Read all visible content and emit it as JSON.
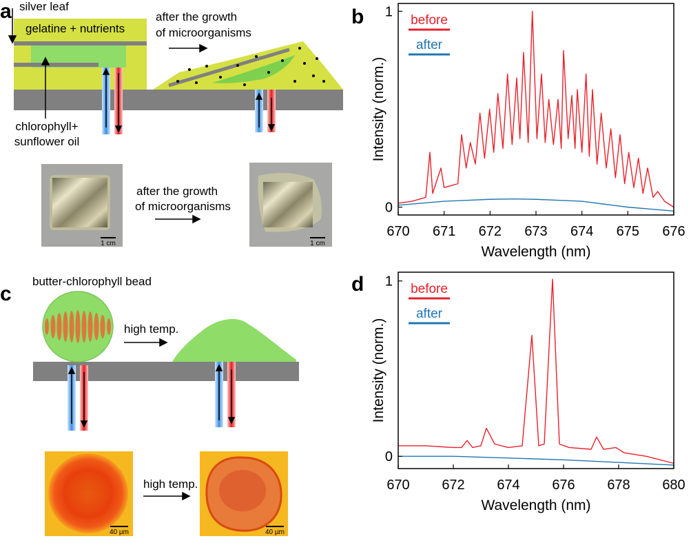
{
  "panels": {
    "a": {
      "label": "a",
      "silver_leaf": "silver leaf",
      "gelatine": "gelatine + nutrients",
      "growth_line1": "after the growth",
      "growth_line2": "of microorganisms",
      "chlorophyll_line1": "chlorophyll+",
      "chlorophyll_line2": "sunflower oil",
      "photo_line1": "after the growth",
      "photo_line2": "of microorganisms",
      "scale_left": "1 cm",
      "scale_right": "1 cm"
    },
    "b": {
      "label": "b"
    },
    "c": {
      "label": "c",
      "bead": "butter-chlorophyll bead",
      "heat": "high temp.",
      "photo_heat": "high temp.",
      "scale_left": "40 µm",
      "scale_right": "40 µm"
    },
    "d": {
      "label": "d"
    }
  },
  "chart_data": [
    {
      "type": "line",
      "xlabel": "Wavelength (nm)",
      "ylabel": "Intensity (norm.)",
      "xlim": [
        670,
        676
      ],
      "xticks": [
        670,
        671,
        672,
        673,
        674,
        675,
        676
      ],
      "ylim": [
        -0.04,
        1.04
      ],
      "yticks": [
        0,
        1
      ],
      "series": [
        {
          "name": "before",
          "color": "#e8202a",
          "x": [
            670,
            670.3,
            670.6,
            670.69,
            670.75,
            670.93,
            671.0,
            671.3,
            671.38,
            671.48,
            671.57,
            671.68,
            671.78,
            671.88,
            671.99,
            672.08,
            672.17,
            672.28,
            672.38,
            672.48,
            672.58,
            672.65,
            672.73,
            672.83,
            672.92,
            673.02,
            673.12,
            673.2,
            673.28,
            673.38,
            673.48,
            673.55,
            673.6,
            673.7,
            673.78,
            673.85,
            673.9,
            674.0,
            674.09,
            674.16,
            674.23,
            674.33,
            674.42,
            674.53,
            674.63,
            674.73,
            674.83,
            674.93,
            675.02,
            675.13,
            675.23,
            675.33,
            675.43,
            675.55,
            675.65,
            675.8,
            676
          ],
          "values": [
            0.02,
            0.03,
            0.05,
            0.28,
            0.07,
            0.2,
            0.1,
            0.12,
            0.37,
            0.2,
            0.33,
            0.22,
            0.48,
            0.25,
            0.5,
            0.28,
            0.58,
            0.3,
            0.68,
            0.32,
            0.66,
            0.35,
            0.79,
            0.33,
            1.0,
            0.35,
            0.68,
            0.33,
            0.55,
            0.32,
            0.55,
            0.3,
            0.8,
            0.35,
            0.57,
            0.3,
            0.6,
            0.28,
            0.68,
            0.26,
            0.6,
            0.22,
            0.48,
            0.2,
            0.4,
            0.15,
            0.37,
            0.12,
            0.28,
            0.1,
            0.25,
            0.07,
            0.2,
            0.05,
            0.08,
            0.03,
            0.0
          ]
        },
        {
          "name": "after",
          "color": "#1f77b4",
          "x": [
            670,
            670.5,
            671,
            671.5,
            672,
            672.5,
            673,
            673.5,
            674,
            674.5,
            675,
            675.5,
            676
          ],
          "values": [
            0.01,
            0.02,
            0.03,
            0.035,
            0.04,
            0.042,
            0.04,
            0.035,
            0.03,
            0.015,
            0.0,
            -0.01,
            -0.02
          ]
        }
      ]
    },
    {
      "type": "line",
      "xlabel": "Wavelength (nm)",
      "ylabel": "Intensity (norm.)",
      "xlim": [
        670,
        680
      ],
      "xticks": [
        670,
        672,
        674,
        676,
        678,
        680
      ],
      "ylim": [
        -0.07,
        1.05
      ],
      "yticks": [
        0,
        1
      ],
      "series": [
        {
          "name": "before",
          "color": "#e8202a",
          "x": [
            670,
            671,
            672,
            672.3,
            672.5,
            672.7,
            673.0,
            673.2,
            673.5,
            674.0,
            674.5,
            674.85,
            675.1,
            675.3,
            675.6,
            675.85,
            676.2,
            677.0,
            677.2,
            677.45,
            677.9,
            678.2,
            679,
            680
          ],
          "values": [
            0.06,
            0.06,
            0.05,
            0.05,
            0.09,
            0.05,
            0.06,
            0.16,
            0.07,
            0.05,
            0.06,
            0.69,
            0.06,
            0.07,
            1.01,
            0.07,
            0.05,
            0.04,
            0.11,
            0.04,
            0.05,
            0.02,
            0.0,
            -0.04
          ]
        },
        {
          "name": "after",
          "color": "#1f77b4",
          "x": [
            670,
            672,
            674,
            676,
            678,
            680
          ],
          "values": [
            0.0,
            0.0,
            -0.01,
            -0.02,
            -0.035,
            -0.05
          ]
        }
      ]
    }
  ]
}
